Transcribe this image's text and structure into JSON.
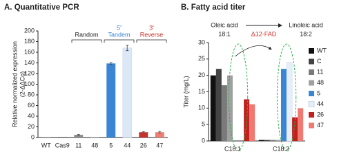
{
  "chart_data": [
    {
      "type": "bar",
      "title": "A. Quantitative PCR",
      "y_label": [
        "Relative normalized expression",
        "(2-ΔΔCq)"
      ],
      "categories": [
        "WT",
        "Cas9",
        "11",
        "48",
        "5",
        "44",
        "26",
        "47"
      ],
      "values": [
        1,
        1,
        5,
        1,
        139,
        168,
        10,
        10
      ],
      "errors": [
        null,
        null,
        1,
        null,
        2,
        5,
        1,
        1.5
      ],
      "colors": [
        "#8c8c8c",
        "#5a5a5a",
        "#8c8c8c",
        "#a8a8a8",
        "#3a86d4",
        "#dce8f6",
        "#c8322d",
        "#ee7d73"
      ],
      "ylim": [
        0,
        200
      ],
      "yticks": [
        0,
        20,
        40,
        60,
        80,
        100,
        120,
        140,
        160,
        180,
        200
      ],
      "groups": [
        {
          "label": "Random",
          "color": "#222222"
        },
        {
          "prime": "5'",
          "label": "Tandem",
          "color": "#3a86d4"
        },
        {
          "prime": "3'",
          "label": "Reverse",
          "color": "#c8322d"
        }
      ]
    },
    {
      "type": "grouped-bar",
      "title": "B. Fatty acid titer",
      "y_label": "Titer (mg/L)",
      "reaction": {
        "from": "Oleic acid",
        "from_ratio": "18:1",
        "to": "Linoleic acid",
        "to_ratio": "18:2",
        "enzyme": "Δ12-FAD"
      },
      "categories": [
        "C18:1",
        "C18:2"
      ],
      "series": [
        {
          "name": "WT",
          "color": "#111111",
          "values": [
            20,
            0.3
          ]
        },
        {
          "name": "C",
          "color": "#444444",
          "values": [
            22,
            0.3
          ]
        },
        {
          "name": "11",
          "color": "#7a7a7a",
          "values": [
            17,
            0.3
          ]
        },
        {
          "name": "48",
          "color": "#a0a0a0",
          "values": [
            20,
            0.3
          ]
        },
        {
          "name": "5",
          "color": "#3a86d4",
          "values": [
            0,
            22
          ]
        },
        {
          "name": "44",
          "color": "#e6eef8",
          "values": [
            0,
            24
          ]
        },
        {
          "name": "26",
          "color": "#c0201e",
          "values": [
            12.7,
            7.2
          ]
        },
        {
          "name": "47",
          "color": "#f07a72",
          "values": [
            11.2,
            10
          ]
        }
      ],
      "ylim": [
        0,
        30
      ],
      "yticks": [
        0,
        5,
        10,
        15,
        20,
        25,
        30
      ]
    }
  ]
}
